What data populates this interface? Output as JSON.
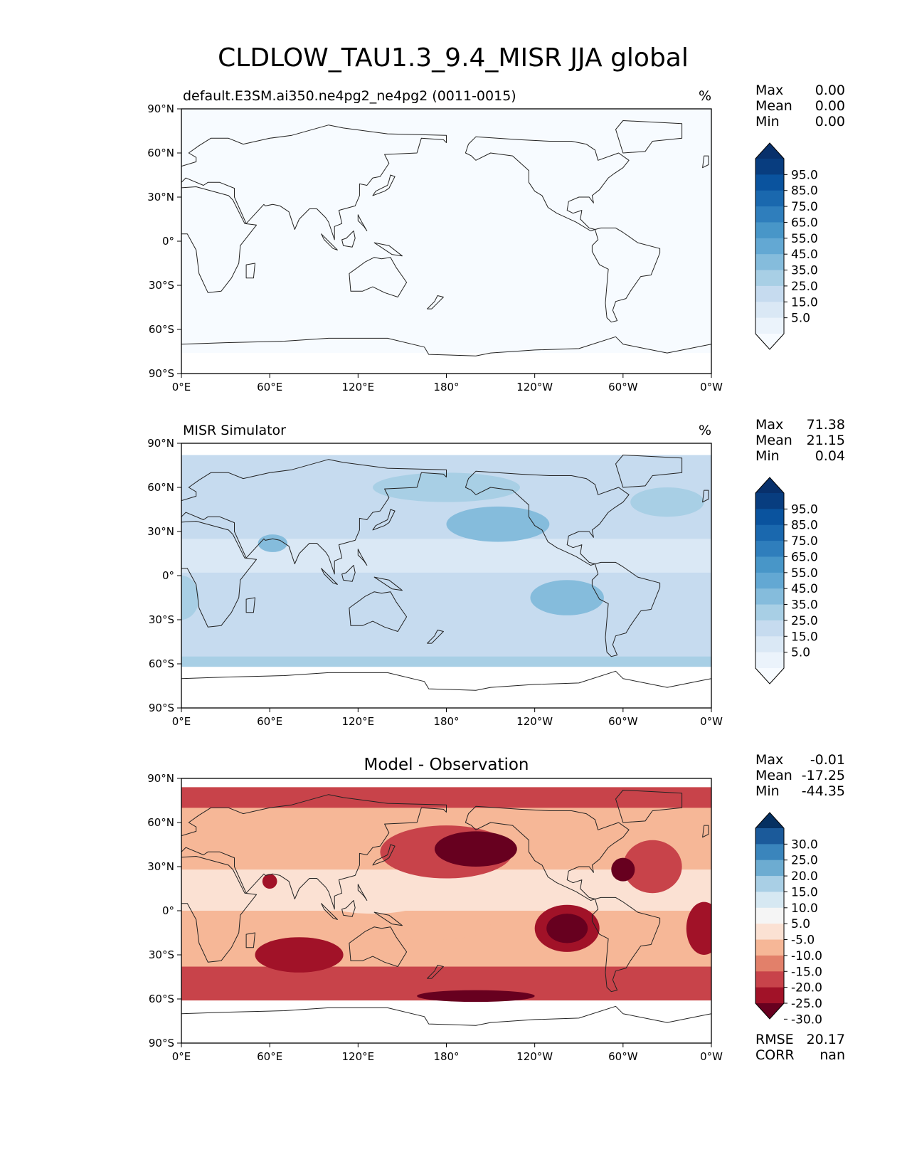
{
  "figure": {
    "title": "CLDLOW_TAU1.3_9.4_MISR JJA global"
  },
  "panels": [
    {
      "id": "test",
      "title_left": "default.E3SM.ai350.ne4pg2_ne4pg2 (0011-0015)",
      "title_center": "",
      "units": "%",
      "stats": [
        {
          "label": "Max",
          "value": "0.00"
        },
        {
          "label": "Mean",
          "value": "0.00"
        },
        {
          "label": "Min",
          "value": "0.00"
        }
      ],
      "extra_stats": [],
      "field": "uniform_zero",
      "colorbar": {
        "colormap": "Blues",
        "labels": [
          "95.0",
          "85.0",
          "75.0",
          "65.0",
          "55.0",
          "45.0",
          "35.0",
          "25.0",
          "15.0",
          "5.0"
        ],
        "colors": [
          "#08306b",
          "#083d7f",
          "#0a539e",
          "#1a68ae",
          "#2f7ebc",
          "#4896c8",
          "#63a8d3",
          "#85bcdc",
          "#a8cfe5",
          "#c6dbef",
          "#dae8f5",
          "#ebf3fb",
          "#f7fbff"
        ]
      }
    },
    {
      "id": "reference",
      "title_left": "MISR Simulator",
      "title_center": "",
      "units": "%",
      "stats": [
        {
          "label": "Max",
          "value": "71.38"
        },
        {
          "label": "Mean",
          "value": "21.15"
        },
        {
          "label": "Min",
          "value": "0.04"
        }
      ],
      "extra_stats": [],
      "field": "observation",
      "colorbar": {
        "colormap": "Blues",
        "labels": [
          "95.0",
          "85.0",
          "75.0",
          "65.0",
          "55.0",
          "45.0",
          "35.0",
          "25.0",
          "15.0",
          "5.0"
        ],
        "colors": [
          "#08306b",
          "#083d7f",
          "#0a539e",
          "#1a68ae",
          "#2f7ebc",
          "#4896c8",
          "#63a8d3",
          "#85bcdc",
          "#a8cfe5",
          "#c6dbef",
          "#dae8f5",
          "#ebf3fb",
          "#f7fbff"
        ]
      }
    },
    {
      "id": "diff",
      "title_left": "",
      "title_center": "Model - Observation",
      "units": "",
      "stats": [
        {
          "label": "Max",
          "value": "-0.01"
        },
        {
          "label": "Mean",
          "value": "-17.25"
        },
        {
          "label": "Min",
          "value": "-44.35"
        }
      ],
      "extra_stats": [
        {
          "label": "RMSE",
          "value": "20.17"
        },
        {
          "label": "CORR",
          "value": "nan"
        }
      ],
      "field": "difference",
      "colorbar": {
        "colormap": "RdBu_r",
        "labels": [
          "30.0",
          "25.0",
          "20.0",
          "15.0",
          "10.0",
          "5.0",
          "-5.0",
          "-10.0",
          "-15.0",
          "-20.0",
          "-25.0",
          "-30.0"
        ],
        "colors": [
          "#053061",
          "#1b5a9a",
          "#3a85bc",
          "#6dacd1",
          "#a9cfe5",
          "#d6e8f2",
          "#f5f5f5",
          "#fbe1d3",
          "#f6b797",
          "#e2806a",
          "#c8434a",
          "#a11228",
          "#67001f"
        ]
      }
    }
  ],
  "axes": {
    "lat_ticks": [
      "90°N",
      "60°N",
      "30°N",
      "0°",
      "30°S",
      "60°S",
      "90°S"
    ],
    "lon_ticks": [
      "0°E",
      "60°E",
      "120°E",
      "180°",
      "120°W",
      "60°W",
      "0°W"
    ]
  }
}
